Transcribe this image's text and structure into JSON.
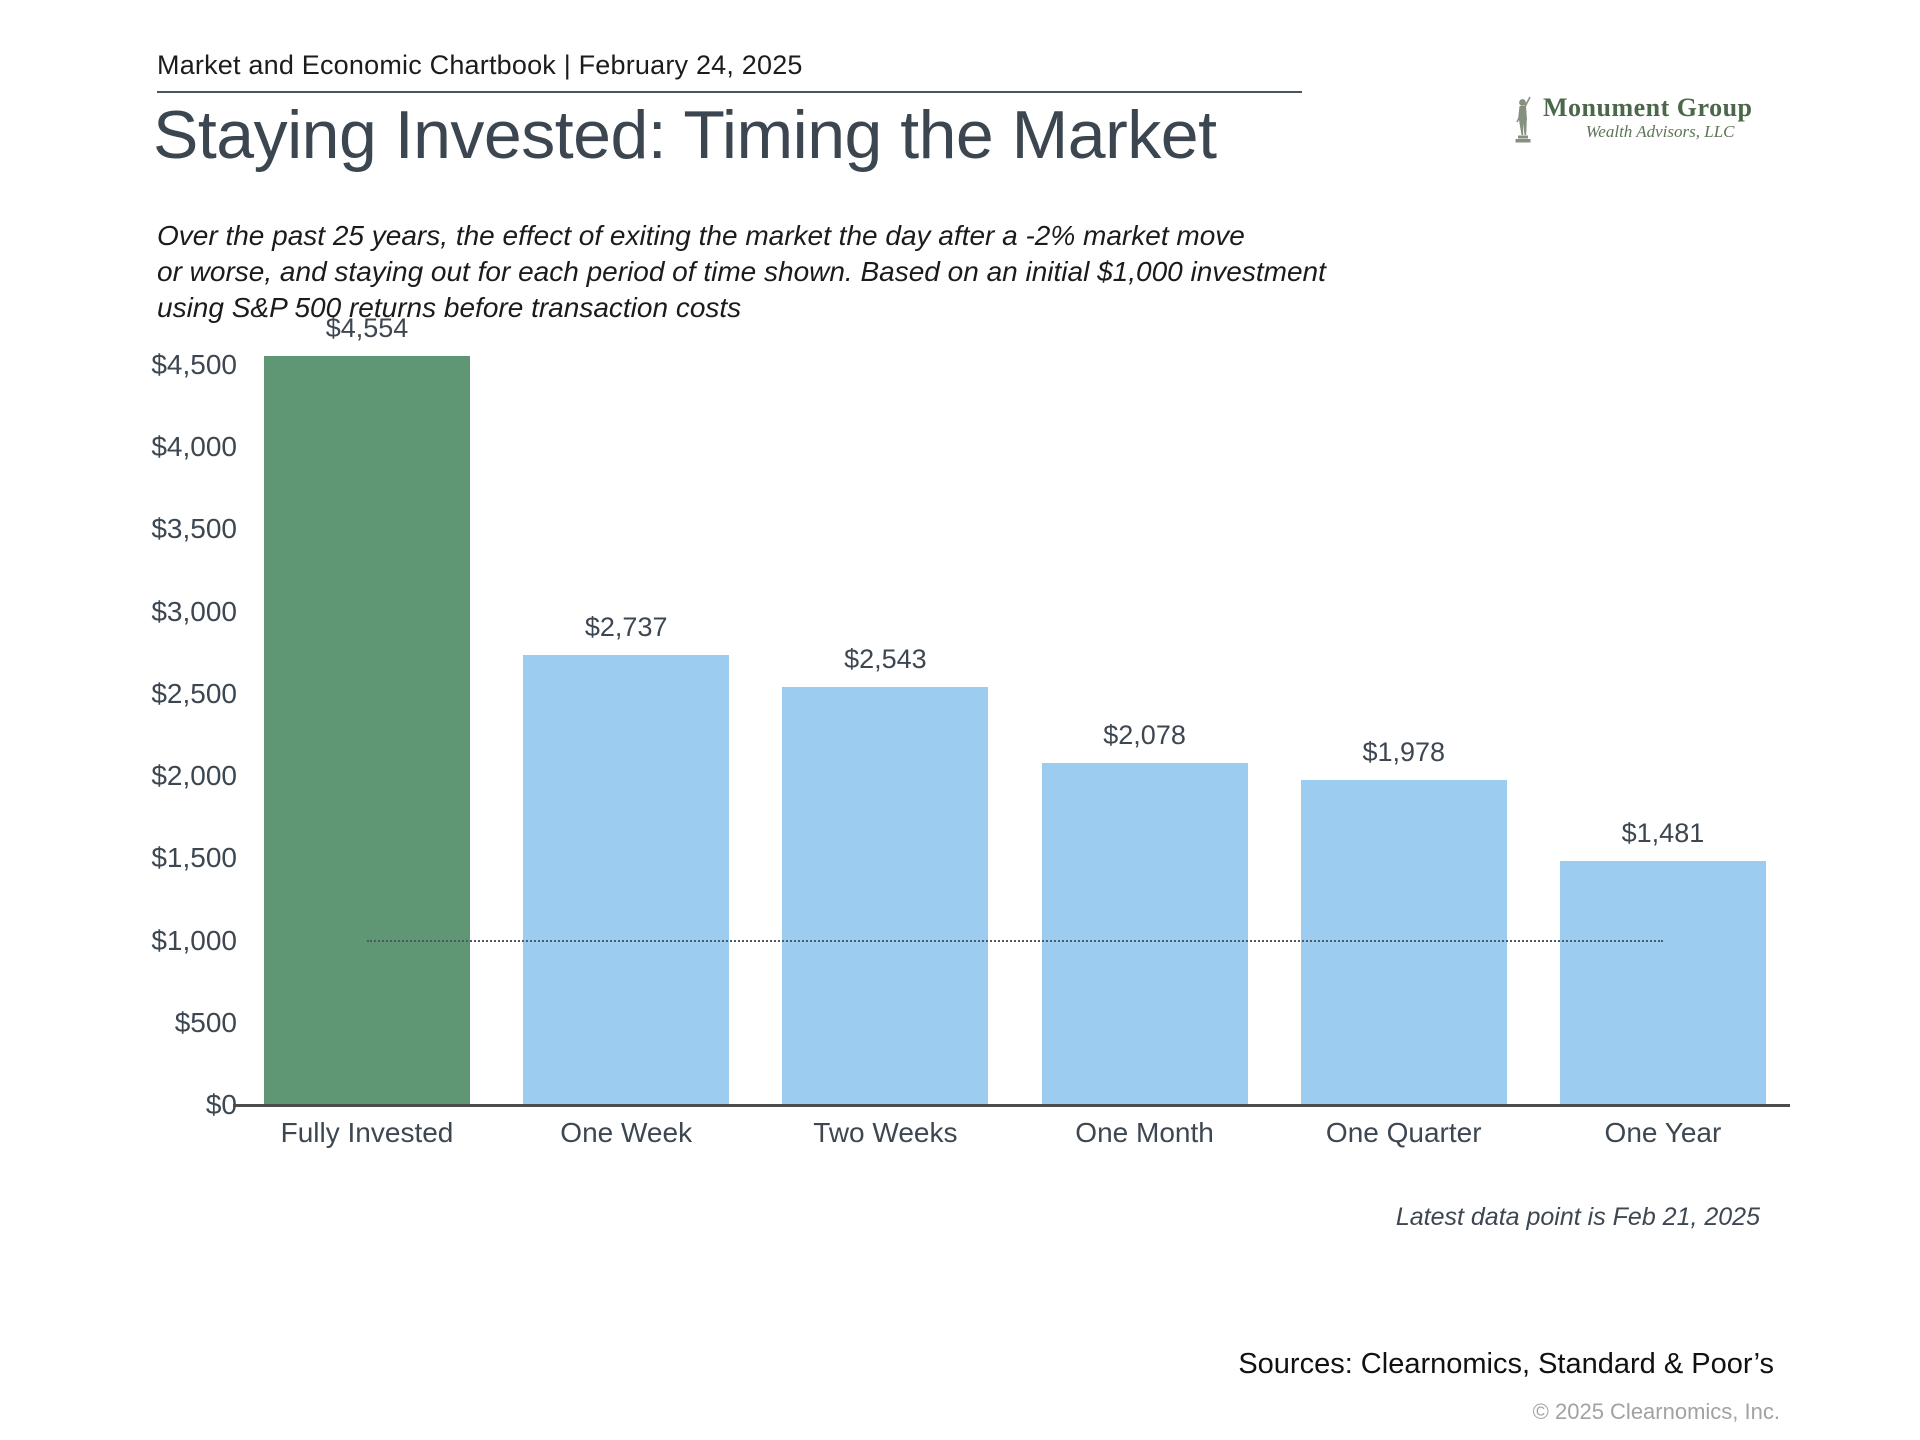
{
  "header": {
    "title": "Market and Economic Chartbook | February 24, 2025"
  },
  "logo": {
    "name": "Monument Group",
    "subtitle": "Wealth Advisors, LLC",
    "icon": "minuteman-statue-icon",
    "text_color": "#4c684a"
  },
  "page": {
    "title": "Staying Invested: Timing the Market",
    "subtitle_lines": [
      "Over the past 25 years, the effect of exiting the market the day after a -2% market move",
      "or worse, and staying out for each period of time shown. Based on an initial $1,000 investment",
      "using S&P 500 returns before transaction costs"
    ]
  },
  "chart_data": {
    "type": "bar",
    "categories": [
      "Fully Invested",
      "One Week",
      "Two Weeks",
      "One Month",
      "One Quarter",
      "One Year"
    ],
    "values": [
      4554,
      2737,
      2543,
      2078,
      1978,
      1481
    ],
    "value_labels": [
      "$4,554",
      "$2,737",
      "$2,543",
      "$2,078",
      "$1,978",
      "$1,481"
    ],
    "bar_colors": [
      "#5f9674",
      "#9ccdf1",
      "#9ccdf1",
      "#9ccdf1",
      "#9ccdf1",
      "#9ccdf1"
    ],
    "highlight_color": "#5f9674",
    "default_bar_color": "#9ccdf1",
    "y_ticks": [
      {
        "value": 0,
        "label": "$0"
      },
      {
        "value": 500,
        "label": "$500"
      },
      {
        "value": 1000,
        "label": "$1,000"
      },
      {
        "value": 1500,
        "label": "$1,500"
      },
      {
        "value": 2000,
        "label": "$2,000"
      },
      {
        "value": 2500,
        "label": "$2,500"
      },
      {
        "value": 3000,
        "label": "$3,000"
      },
      {
        "value": 3500,
        "label": "$3,500"
      },
      {
        "value": 4000,
        "label": "$4,000"
      },
      {
        "value": 4500,
        "label": "$4,500"
      }
    ],
    "ylim": [
      0,
      4622
    ],
    "grid": false,
    "legend": false,
    "reference_line": {
      "value": 1000,
      "style": "dotted"
    },
    "title": "Staying Invested: Timing the Market",
    "xlabel": "",
    "ylabel": ""
  },
  "footer": {
    "latest_note": "Latest data point is Feb 21, 2025",
    "sources": "Sources: Clearnomics, Standard & Poor’s",
    "copyright": "© 2025 Clearnomics, Inc."
  }
}
